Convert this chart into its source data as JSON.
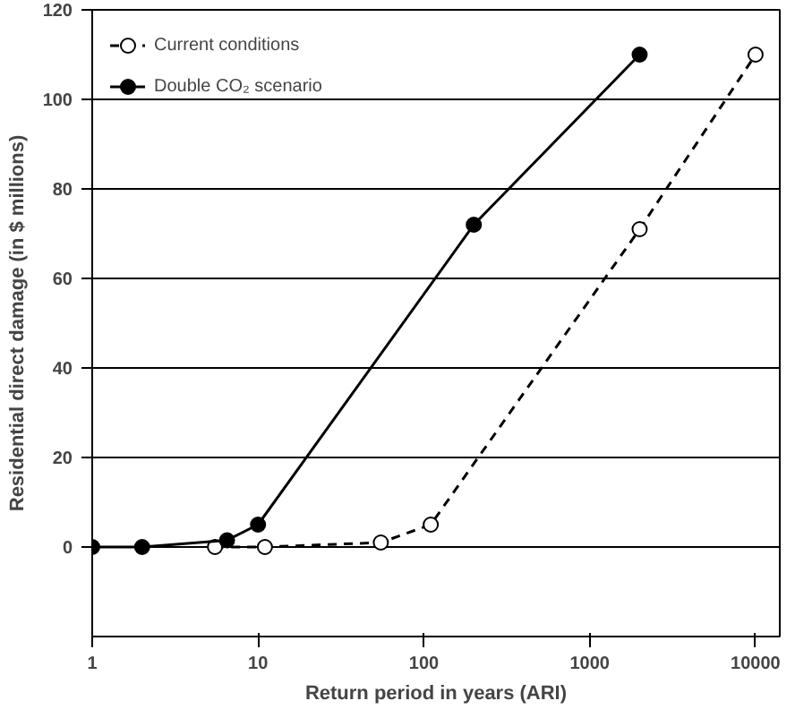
{
  "chart_data": {
    "type": "line",
    "xlabel": "Return period in years (ARI)",
    "ylabel": "Residential direct damage (in $ millions)",
    "log": "x",
    "xlim": [
      1,
      14000
    ],
    "xticks": [
      1,
      10,
      100,
      1000,
      10000
    ],
    "ylim": [
      -20,
      120
    ],
    "yticks": [
      0,
      20,
      40,
      60,
      80,
      100,
      120
    ],
    "grid": "y",
    "legend": "top left",
    "marker": "circle",
    "series": [
      {
        "name": "Current conditions",
        "color": "#000000",
        "line_style": "dashed",
        "x": [
          5.5,
          11,
          55,
          110,
          2000,
          10000
        ],
        "values": [
          0,
          0,
          1,
          5,
          71,
          110
        ]
      },
      {
        "name": "Double CO₂ scenario",
        "color": "#000000",
        "line_style": "solid",
        "x": [
          1,
          2,
          6.5,
          10,
          200,
          2000
        ],
        "values": [
          0,
          0,
          1.5,
          5,
          72,
          110
        ]
      }
    ]
  }
}
